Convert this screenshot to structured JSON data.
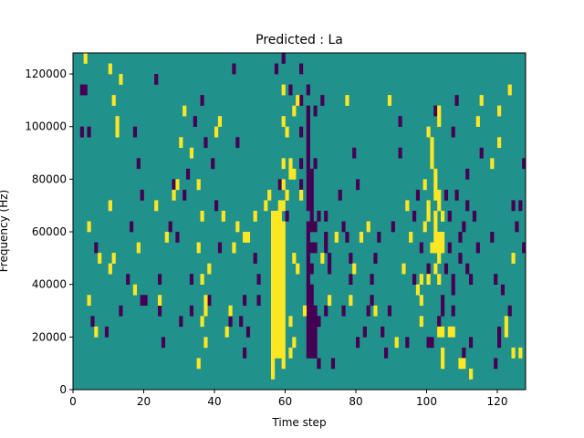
{
  "chart_data": {
    "type": "heatmap",
    "title": "Predicted : La",
    "xlabel": "Time step",
    "ylabel": "Frequency (Hz)",
    "xlim": [
      0,
      128
    ],
    "ylim": [
      0,
      128000
    ],
    "x_ticks": [
      0,
      20,
      40,
      60,
      80,
      100,
      120
    ],
    "x_tick_labels": [
      "0",
      "20",
      "40",
      "60",
      "80",
      "100",
      "120"
    ],
    "y_ticks": [
      0,
      20000,
      40000,
      60000,
      80000,
      100000,
      120000
    ],
    "y_tick_labels": [
      "0",
      "20000",
      "40000",
      "60000",
      "80000",
      "100000",
      "120000"
    ],
    "grid": false,
    "colors": {
      "background": "#21918c",
      "high": "#fde725",
      "low": "#440154"
    },
    "bin_width_hz": 4000,
    "yellow_cells": [
      [
        3,
        124000
      ],
      [
        10,
        120000
      ],
      [
        13,
        116000
      ],
      [
        11,
        108000
      ],
      [
        12,
        100000
      ],
      [
        12,
        96000
      ],
      [
        10,
        68000
      ],
      [
        4,
        60000
      ],
      [
        7,
        48000
      ],
      [
        10,
        44000
      ],
      [
        11,
        48000
      ],
      [
        4,
        32000
      ],
      [
        6,
        20000
      ],
      [
        17,
        36000
      ],
      [
        18,
        52000
      ],
      [
        23,
        68000
      ],
      [
        24,
        32000
      ],
      [
        26,
        56000
      ],
      [
        28,
        72000
      ],
      [
        29,
        76000
      ],
      [
        30,
        92000
      ],
      [
        31,
        104000
      ],
      [
        33,
        88000
      ],
      [
        35,
        76000
      ],
      [
        36,
        64000
      ],
      [
        35,
        52000
      ],
      [
        36,
        40000
      ],
      [
        37,
        28000
      ],
      [
        36,
        24000
      ],
      [
        37,
        16000
      ],
      [
        35,
        8000
      ],
      [
        37,
        32000
      ],
      [
        38,
        44000
      ],
      [
        40,
        96000
      ],
      [
        41,
        100000
      ],
      [
        42,
        64000
      ],
      [
        43,
        20000
      ],
      [
        44,
        28000
      ],
      [
        45,
        52000
      ],
      [
        46,
        60000
      ],
      [
        48,
        56000
      ],
      [
        49,
        56000
      ],
      [
        51,
        64000
      ],
      [
        54,
        68000
      ],
      [
        55,
        72000
      ],
      [
        56,
        48000
      ],
      [
        56,
        64000
      ],
      [
        56,
        60000
      ],
      [
        56,
        56000
      ],
      [
        56,
        52000
      ],
      [
        56,
        44000
      ],
      [
        56,
        40000
      ],
      [
        56,
        36000
      ],
      [
        56,
        32000
      ],
      [
        56,
        28000
      ],
      [
        56,
        24000
      ],
      [
        56,
        20000
      ],
      [
        56,
        16000
      ],
      [
        56,
        12000
      ],
      [
        56,
        8000
      ],
      [
        56,
        4000
      ],
      [
        57,
        64000
      ],
      [
        57,
        60000
      ],
      [
        57,
        56000
      ],
      [
        57,
        52000
      ],
      [
        57,
        48000
      ],
      [
        57,
        44000
      ],
      [
        57,
        40000
      ],
      [
        57,
        36000
      ],
      [
        57,
        32000
      ],
      [
        57,
        28000
      ],
      [
        57,
        24000
      ],
      [
        57,
        20000
      ],
      [
        57,
        16000
      ],
      [
        57,
        12000
      ],
      [
        58,
        68000
      ],
      [
        58,
        64000
      ],
      [
        58,
        60000
      ],
      [
        58,
        56000
      ],
      [
        58,
        52000
      ],
      [
        58,
        48000
      ],
      [
        58,
        44000
      ],
      [
        58,
        40000
      ],
      [
        58,
        36000
      ],
      [
        58,
        32000
      ],
      [
        58,
        28000
      ],
      [
        58,
        24000
      ],
      [
        58,
        20000
      ],
      [
        58,
        16000
      ],
      [
        58,
        12000
      ],
      [
        59,
        84000
      ],
      [
        59,
        76000
      ],
      [
        59,
        68000
      ],
      [
        59,
        60000
      ],
      [
        59,
        56000
      ],
      [
        59,
        52000
      ],
      [
        59,
        48000
      ],
      [
        59,
        44000
      ],
      [
        59,
        40000
      ],
      [
        59,
        36000
      ],
      [
        59,
        32000
      ],
      [
        59,
        28000
      ],
      [
        59,
        24000
      ],
      [
        59,
        20000
      ],
      [
        59,
        16000
      ],
      [
        59,
        12000
      ],
      [
        59,
        8000
      ],
      [
        59,
        100000
      ],
      [
        59,
        112000
      ],
      [
        60,
        72000
      ],
      [
        60,
        96000
      ],
      [
        61,
        84000
      ],
      [
        61,
        80000
      ],
      [
        61,
        12000
      ],
      [
        61,
        24000
      ],
      [
        62,
        48000
      ],
      [
        62,
        16000
      ],
      [
        62,
        104000
      ],
      [
        62,
        80000
      ],
      [
        63,
        44000
      ],
      [
        63,
        108000
      ],
      [
        64,
        72000
      ],
      [
        65,
        28000
      ],
      [
        70,
        48000
      ],
      [
        72,
        32000
      ],
      [
        74,
        56000
      ],
      [
        77,
        108000
      ],
      [
        78,
        32000
      ],
      [
        79,
        44000
      ],
      [
        81,
        56000
      ],
      [
        83,
        60000
      ],
      [
        85,
        28000
      ],
      [
        89,
        108000
      ],
      [
        91,
        16000
      ],
      [
        93,
        44000
      ],
      [
        94,
        68000
      ],
      [
        95,
        56000
      ],
      [
        97,
        36000
      ],
      [
        98,
        32000
      ],
      [
        98,
        24000
      ],
      [
        98,
        40000
      ],
      [
        99,
        60000
      ],
      [
        100,
        64000
      ],
      [
        99,
        76000
      ],
      [
        100,
        96000
      ],
      [
        100,
        68000
      ],
      [
        100,
        40000
      ],
      [
        101,
        52000
      ],
      [
        101,
        84000
      ],
      [
        101,
        88000
      ],
      [
        101,
        92000
      ],
      [
        102,
        80000
      ],
      [
        102,
        76000
      ],
      [
        102,
        72000
      ],
      [
        102,
        44000
      ],
      [
        102,
        64000
      ],
      [
        102,
        60000
      ],
      [
        102,
        56000
      ],
      [
        102,
        52000
      ],
      [
        103,
        100000
      ],
      [
        103,
        104000
      ],
      [
        103,
        72000
      ],
      [
        103,
        68000
      ],
      [
        103,
        56000
      ],
      [
        103,
        52000
      ],
      [
        103,
        48000
      ],
      [
        103,
        40000
      ],
      [
        103,
        20000
      ],
      [
        104,
        64000
      ],
      [
        104,
        56000
      ],
      [
        104,
        52000
      ],
      [
        104,
        20000
      ],
      [
        104,
        12000
      ],
      [
        104,
        8000
      ],
      [
        106,
        20000
      ],
      [
        107,
        20000
      ],
      [
        109,
        8000
      ],
      [
        110,
        8000
      ],
      [
        112,
        4000
      ],
      [
        114,
        100000
      ],
      [
        115,
        108000
      ],
      [
        118,
        84000
      ],
      [
        120,
        92000
      ],
      [
        120,
        104000
      ],
      [
        122,
        20000
      ],
      [
        123,
        112000
      ],
      [
        124,
        48000
      ],
      [
        124,
        12000
      ],
      [
        126,
        12000
      ],
      [
        122,
        24000
      ]
    ],
    "purple_cells": [
      [
        2,
        112000
      ],
      [
        3,
        112000
      ],
      [
        2,
        96000
      ],
      [
        4,
        96000
      ],
      [
        5,
        24000
      ],
      [
        6,
        52000
      ],
      [
        9,
        20000
      ],
      [
        13,
        28000
      ],
      [
        15,
        40000
      ],
      [
        16,
        60000
      ],
      [
        17,
        96000
      ],
      [
        18,
        84000
      ],
      [
        19,
        72000
      ],
      [
        19,
        32000
      ],
      [
        20,
        32000
      ],
      [
        23,
        116000
      ],
      [
        24,
        28000
      ],
      [
        24,
        40000
      ],
      [
        25,
        16000
      ],
      [
        27,
        60000
      ],
      [
        28,
        76000
      ],
      [
        29,
        56000
      ],
      [
        30,
        24000
      ],
      [
        31,
        72000
      ],
      [
        32,
        80000
      ],
      [
        33,
        40000
      ],
      [
        33,
        28000
      ],
      [
        34,
        100000
      ],
      [
        36,
        108000
      ],
      [
        37,
        92000
      ],
      [
        38,
        32000
      ],
      [
        39,
        84000
      ],
      [
        41,
        52000
      ],
      [
        40,
        68000
      ],
      [
        44,
        24000
      ],
      [
        45,
        120000
      ],
      [
        46,
        92000
      ],
      [
        47,
        24000
      ],
      [
        48,
        32000
      ],
      [
        48,
        12000
      ],
      [
        49,
        20000
      ],
      [
        51,
        48000
      ],
      [
        52,
        40000
      ],
      [
        52,
        32000
      ],
      [
        57,
        120000
      ],
      [
        58,
        76000
      ],
      [
        59,
        124000
      ],
      [
        60,
        64000
      ],
      [
        61,
        112000
      ],
      [
        64,
        108000
      ],
      [
        64,
        96000
      ],
      [
        64,
        76000
      ],
      [
        64,
        84000
      ],
      [
        64,
        120000
      ],
      [
        66,
        112000
      ],
      [
        66,
        104000
      ],
      [
        66,
        100000
      ],
      [
        66,
        96000
      ],
      [
        66,
        92000
      ],
      [
        66,
        88000
      ],
      [
        66,
        84000
      ],
      [
        66,
        80000
      ],
      [
        66,
        76000
      ],
      [
        66,
        72000
      ],
      [
        66,
        68000
      ],
      [
        66,
        60000
      ],
      [
        66,
        56000
      ],
      [
        66,
        52000
      ],
      [
        66,
        48000
      ],
      [
        66,
        44000
      ],
      [
        66,
        40000
      ],
      [
        66,
        36000
      ],
      [
        66,
        32000
      ],
      [
        66,
        28000
      ],
      [
        66,
        24000
      ],
      [
        66,
        20000
      ],
      [
        66,
        16000
      ],
      [
        66,
        12000
      ],
      [
        67,
        80000
      ],
      [
        67,
        76000
      ],
      [
        67,
        72000
      ],
      [
        67,
        68000
      ],
      [
        67,
        64000
      ],
      [
        67,
        60000
      ],
      [
        67,
        52000
      ],
      [
        67,
        44000
      ],
      [
        67,
        36000
      ],
      [
        67,
        32000
      ],
      [
        67,
        28000
      ],
      [
        67,
        24000
      ],
      [
        67,
        20000
      ],
      [
        67,
        16000
      ],
      [
        67,
        12000
      ],
      [
        68,
        104000
      ],
      [
        68,
        84000
      ],
      [
        68,
        60000
      ],
      [
        68,
        52000
      ],
      [
        68,
        28000
      ],
      [
        68,
        24000
      ],
      [
        68,
        20000
      ],
      [
        68,
        16000
      ],
      [
        68,
        12000
      ],
      [
        69,
        64000
      ],
      [
        69,
        24000
      ],
      [
        69,
        8000
      ],
      [
        70,
        108000
      ],
      [
        71,
        64000
      ],
      [
        71,
        56000
      ],
      [
        71,
        52000
      ],
      [
        71,
        28000
      ],
      [
        72,
        48000
      ],
      [
        72,
        44000
      ],
      [
        73,
        8000
      ],
      [
        75,
        72000
      ],
      [
        76,
        60000
      ],
      [
        76,
        28000
      ],
      [
        77,
        56000
      ],
      [
        78,
        40000
      ],
      [
        78,
        48000
      ],
      [
        79,
        88000
      ],
      [
        80,
        16000
      ],
      [
        80,
        76000
      ],
      [
        82,
        20000
      ],
      [
        83,
        28000
      ],
      [
        84,
        32000
      ],
      [
        84,
        40000
      ],
      [
        85,
        48000
      ],
      [
        86,
        56000
      ],
      [
        87,
        20000
      ],
      [
        88,
        12000
      ],
      [
        89,
        28000
      ],
      [
        90,
        60000
      ],
      [
        92,
        88000
      ],
      [
        92,
        100000
      ],
      [
        94,
        16000
      ],
      [
        96,
        64000
      ],
      [
        96,
        40000
      ],
      [
        97,
        72000
      ],
      [
        98,
        52000
      ],
      [
        100,
        44000
      ],
      [
        100,
        16000
      ],
      [
        101,
        16000
      ],
      [
        102,
        104000
      ],
      [
        103,
        24000
      ],
      [
        104,
        32000
      ],
      [
        104,
        28000
      ],
      [
        105,
        72000
      ],
      [
        105,
        44000
      ],
      [
        106,
        64000
      ],
      [
        106,
        52000
      ],
      [
        107,
        96000
      ],
      [
        107,
        36000
      ],
      [
        107,
        28000
      ],
      [
        107,
        40000
      ],
      [
        108,
        108000
      ],
      [
        108,
        72000
      ],
      [
        109,
        56000
      ],
      [
        109,
        48000
      ],
      [
        110,
        60000
      ],
      [
        110,
        12000
      ],
      [
        111,
        80000
      ],
      [
        111,
        68000
      ],
      [
        111,
        44000
      ],
      [
        112,
        40000
      ],
      [
        112,
        16000
      ],
      [
        113,
        64000
      ],
      [
        114,
        52000
      ],
      [
        115,
        88000
      ],
      [
        118,
        56000
      ],
      [
        119,
        40000
      ],
      [
        120,
        20000
      ],
      [
        120,
        16000
      ],
      [
        121,
        36000
      ],
      [
        123,
        28000
      ],
      [
        124,
        68000
      ],
      [
        125,
        60000
      ],
      [
        126,
        68000
      ],
      [
        127,
        84000
      ],
      [
        127,
        52000
      ],
      [
        119,
        8000
      ]
    ]
  }
}
